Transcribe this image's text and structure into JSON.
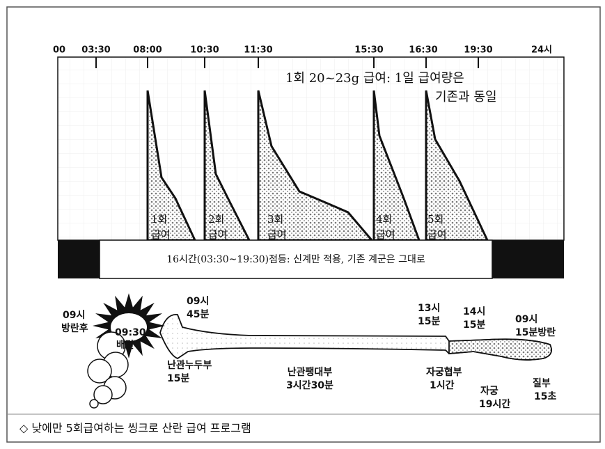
{
  "time_axis": {
    "labels": [
      "00",
      "03:30",
      "08:00",
      "10:30",
      "11:30",
      "15:30",
      "16:30",
      "19:30",
      "24시"
    ]
  },
  "note": {
    "lines": [
      "1회 20~23g 급여: 1일 급여량은",
      "기존과 동일"
    ]
  },
  "feedings": [
    {
      "number": "1회",
      "label": "급여"
    },
    {
      "number": "2회",
      "label": "급여"
    },
    {
      "number": "3회",
      "label": "급여"
    },
    {
      "number": "4회",
      "label": "급여"
    },
    {
      "number": "5회",
      "label": "급여"
    }
  ],
  "lighting": "16시간(03:30~19:30)점등: 신계만 적용, 기존 계군은 그대로",
  "oviduct": {
    "labels": [
      {
        "lines": [
          "09시",
          "방란후"
        ]
      },
      {
        "lines": [
          "09:30",
          "배란"
        ]
      },
      {
        "lines": [
          "09시",
          "45분"
        ]
      },
      {
        "lines": [
          "난관누두부",
          "15분"
        ]
      },
      {
        "lines": [
          "난관팽대부",
          "3시간30분"
        ]
      },
      {
        "lines": [
          "13시",
          "15분"
        ]
      },
      {
        "lines": [
          "14시",
          "15분"
        ]
      },
      {
        "lines": [
          "09시",
          "15분방란"
        ]
      },
      {
        "lines": [
          "자궁협부",
          "1시간"
        ]
      },
      {
        "lines": [
          "자궁",
          "19시간"
        ]
      },
      {
        "lines": [
          "질부",
          "15초"
        ]
      }
    ]
  },
  "caption": "◇ 낮에만 5회급여하는 씽크로 산란 급여 프로그램"
}
